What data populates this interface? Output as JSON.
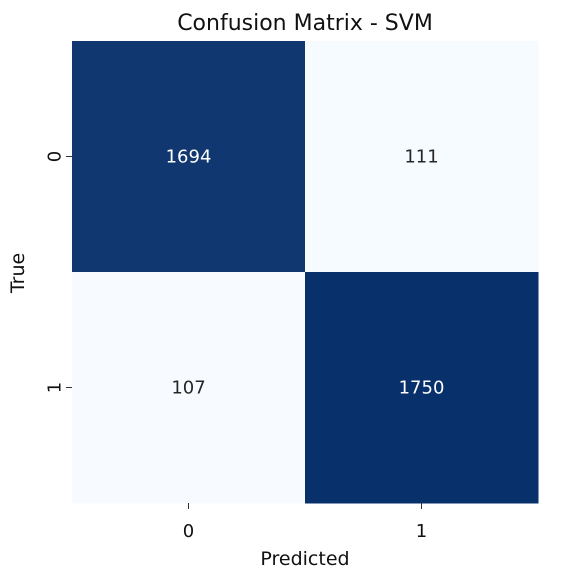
{
  "chart_data": {
    "type": "heatmap",
    "title": "Confusion Matrix - SVM",
    "xlabel": "Predicted",
    "ylabel": "True",
    "x_categories": [
      "0",
      "1"
    ],
    "y_categories": [
      "0",
      "1"
    ],
    "values": [
      [
        1694,
        111
      ],
      [
        107,
        1750
      ]
    ],
    "colormap": "Blues",
    "colorbar": false,
    "grid": false,
    "colors": {
      "low": "#f7fbff",
      "high": "#08306b",
      "text_on_dark": "#ffffff",
      "text_on_light": "#262626",
      "axis_text": "#111111",
      "tick_color": "#333333"
    }
  }
}
